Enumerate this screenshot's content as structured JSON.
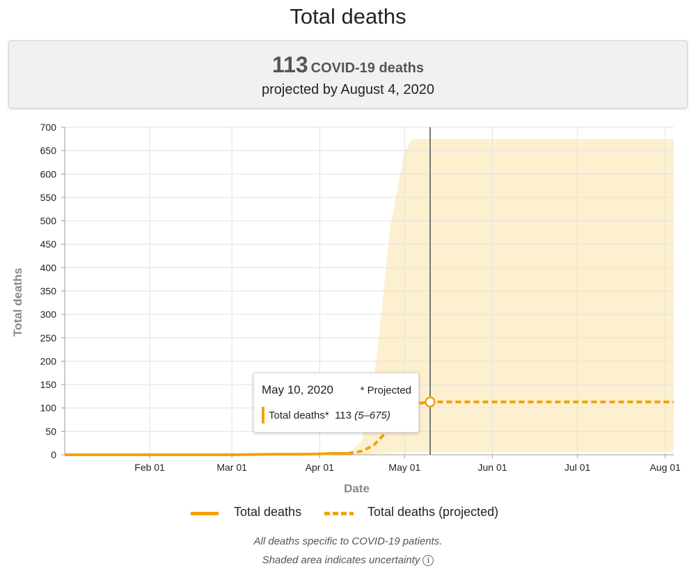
{
  "page": {
    "title": "Total deaths",
    "summary_value": "113",
    "summary_unit": "COVID-19 deaths",
    "summary_sub": "projected by August 4, 2020"
  },
  "tooltip": {
    "date": "May 10, 2020",
    "projected_note": "* Projected",
    "series_label": "Total deaths*",
    "value": "113",
    "range": "(5–675)"
  },
  "legend": {
    "actual": "Total deaths",
    "projected": "Total deaths (projected)"
  },
  "notes": {
    "line1": "All deaths specific to COVID-19 patients.",
    "line2": "Shaded area indicates uncertainty",
    "info_icon": "info-icon"
  },
  "colors": {
    "series": "#f0a30a",
    "band": "#fdf0cf",
    "grid": "#e2e2e2",
    "marker_line": "#777777",
    "axis_label": "#888888"
  },
  "chart_data": {
    "type": "line",
    "xlabel": "Date",
    "ylabel": "Total deaths",
    "xlim": [
      "2020-01-02",
      "2020-08-04"
    ],
    "ylim": [
      0,
      700
    ],
    "yticks": [
      0,
      50,
      100,
      150,
      200,
      250,
      300,
      350,
      400,
      450,
      500,
      550,
      600,
      650,
      700
    ],
    "xticks": [
      {
        "date": "2020-02-01",
        "label": "Feb 01"
      },
      {
        "date": "2020-03-01",
        "label": "Mar 01"
      },
      {
        "date": "2020-04-01",
        "label": "Apr 01"
      },
      {
        "date": "2020-05-01",
        "label": "May 01"
      },
      {
        "date": "2020-06-01",
        "label": "Jun 01"
      },
      {
        "date": "2020-07-01",
        "label": "Jul 01"
      },
      {
        "date": "2020-08-01",
        "label": "Aug 01"
      }
    ],
    "grid": true,
    "legend_position": "bottom",
    "highlight_date": "2020-05-10",
    "series": [
      {
        "name": "Total deaths",
        "style": "solid",
        "points": [
          [
            "2020-01-02",
            0
          ],
          [
            "2020-03-01",
            0
          ],
          [
            "2020-03-15",
            1
          ],
          [
            "2020-03-25",
            1
          ],
          [
            "2020-04-01",
            2
          ],
          [
            "2020-04-06",
            3
          ],
          [
            "2020-04-11",
            3
          ]
        ]
      },
      {
        "name": "Total deaths (projected)",
        "style": "dashed",
        "points": [
          [
            "2020-04-11",
            3
          ],
          [
            "2020-04-16",
            8
          ],
          [
            "2020-04-20",
            20
          ],
          [
            "2020-04-24",
            45
          ],
          [
            "2020-04-28",
            75
          ],
          [
            "2020-05-02",
            100
          ],
          [
            "2020-05-06",
            110
          ],
          [
            "2020-05-10",
            113
          ],
          [
            "2020-06-01",
            113
          ],
          [
            "2020-07-01",
            113
          ],
          [
            "2020-08-04",
            113
          ]
        ]
      }
    ],
    "uncertainty": [
      [
        "2020-04-11",
        0,
        3
      ],
      [
        "2020-04-16",
        0,
        30
      ],
      [
        "2020-04-21",
        2,
        200
      ],
      [
        "2020-04-26",
        4,
        490
      ],
      [
        "2020-05-01",
        5,
        650
      ],
      [
        "2020-05-04",
        5,
        675
      ],
      [
        "2020-06-01",
        5,
        675
      ],
      [
        "2020-07-01",
        5,
        675
      ],
      [
        "2020-08-04",
        5,
        675
      ]
    ]
  }
}
